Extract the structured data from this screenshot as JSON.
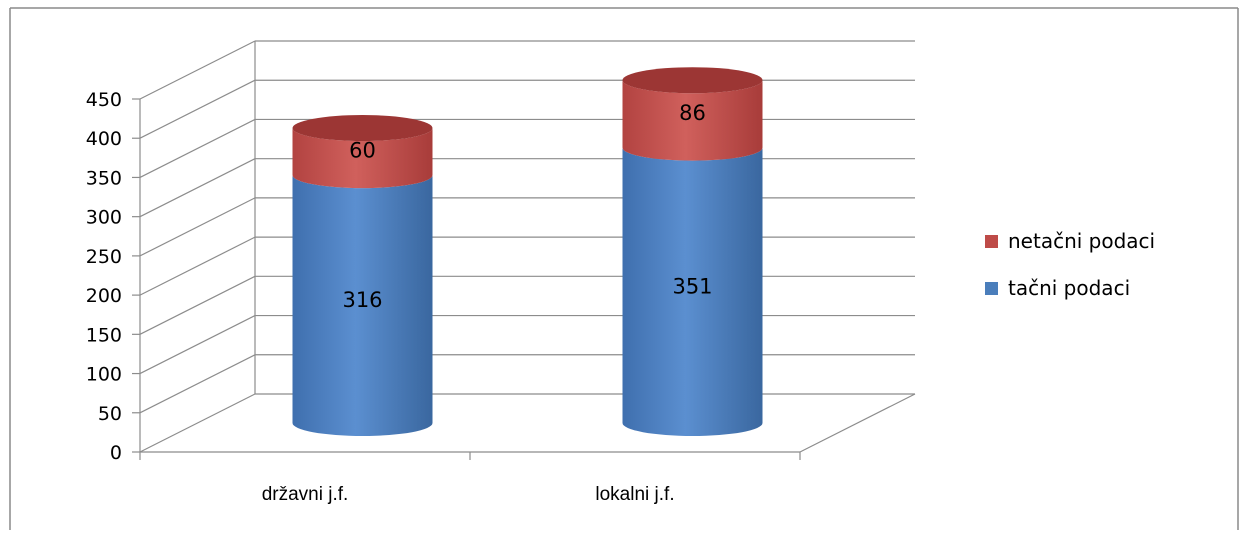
{
  "chart_data": {
    "type": "bar",
    "subtype": "stacked-3d-cylinder",
    "categories": [
      "državni j.f.",
      "lokalni j.f."
    ],
    "series": [
      {
        "name": "tačni podaci",
        "values": [
          316,
          351
        ],
        "color": "#4a7ebb"
      },
      {
        "name": "netačni podaci",
        "values": [
          60,
          86
        ],
        "color": "#be4b48"
      }
    ],
    "y_ticks": [
      "0",
      "50",
      "100",
      "150",
      "200",
      "250",
      "300",
      "350",
      "400",
      "450"
    ],
    "ylim": [
      0,
      450
    ],
    "grid": true,
    "legend_position": "right",
    "legend_order": [
      "netačni podaci",
      "tačni podaci"
    ]
  }
}
